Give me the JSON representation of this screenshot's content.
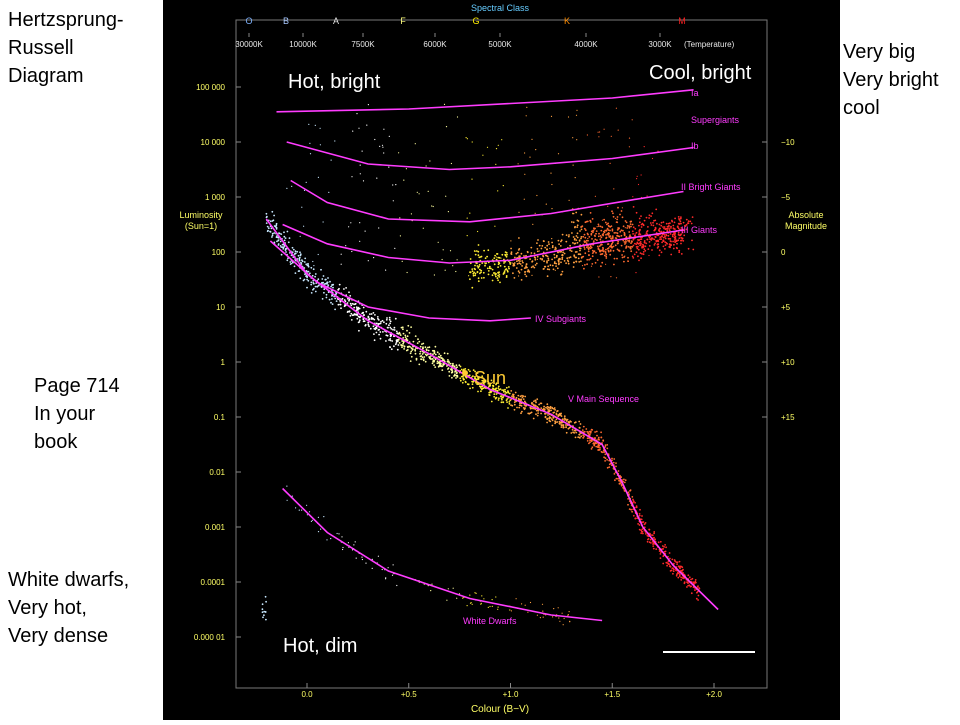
{
  "notes": {
    "hertzsprung": "Hertzsprung-\nRussell\nDiagram",
    "page_ref": "Page 714\nIn your\nbook",
    "white_dwarfs": "White dwarfs,\nVery hot,\nVery dense",
    "very_big": "Very big\nVery bright\ncool"
  },
  "chart_data": {
    "type": "scatter",
    "top_axis_title": "Spectral Class",
    "spectral_classes": [
      {
        "label": "O",
        "color": "#7fb3ff"
      },
      {
        "label": "B",
        "color": "#a8c8ff"
      },
      {
        "label": "A",
        "color": "#e0e0e0"
      },
      {
        "label": "F",
        "color": "#ffff80"
      },
      {
        "label": "G",
        "color": "#ffee00"
      },
      {
        "label": "K",
        "color": "#ff8c00"
      },
      {
        "label": "M",
        "color": "#ff2020"
      }
    ],
    "temperature_labels": [
      "30000K",
      "10000K",
      "7500K",
      "6000K",
      "5000K",
      "4000K",
      "3000K"
    ],
    "temperature_title": "(Temperature)",
    "xlabel": "Colour (B−V)",
    "x_ticks": [
      "0.0",
      "+0.5",
      "+1.0",
      "+1.5",
      "+2.0"
    ],
    "x_tick_values": [
      0.0,
      0.5,
      1.0,
      1.5,
      2.0
    ],
    "xlim": [
      -0.35,
      2.25
    ],
    "ylabel_left": "Luminosity\n(Sun=1)",
    "y_left_ticks": [
      "100 000",
      "10 000",
      "1 000",
      "100",
      "10",
      "1",
      "0.1",
      "0.01",
      "0.001",
      "0.0001",
      "0.000 01"
    ],
    "y_left_log_values": [
      5,
      4,
      3,
      2,
      1,
      0,
      -1,
      -2,
      -3,
      -4,
      -5
    ],
    "ylim_log_luminosity": [
      -6,
      6
    ],
    "ylabel_right": "Absolute\nMagnitude",
    "y_right_ticks": [
      "−10",
      "−5",
      "0",
      "+5",
      "+10",
      "+15"
    ],
    "y_right_values": [
      -10,
      -5,
      0,
      5,
      10,
      15
    ],
    "series": [
      {
        "name": "Ia",
        "color": "#ff3cff",
        "points": [
          [
            -0.15,
            4.55
          ],
          [
            0.5,
            4.6
          ],
          [
            1.0,
            4.7
          ],
          [
            1.5,
            4.8
          ],
          [
            1.9,
            4.95
          ]
        ]
      },
      {
        "name": "Ib",
        "color": "#ff3cff",
        "points": [
          [
            -0.1,
            4.0
          ],
          [
            0.3,
            3.6
          ],
          [
            0.7,
            3.5
          ],
          [
            1.0,
            3.55
          ],
          [
            1.5,
            3.7
          ],
          [
            1.9,
            3.9
          ]
        ]
      },
      {
        "name": "II Bright Giants",
        "color": "#ff3cff",
        "points": [
          [
            -0.08,
            3.3
          ],
          [
            0.1,
            2.9
          ],
          [
            0.4,
            2.6
          ],
          [
            0.8,
            2.55
          ],
          [
            1.2,
            2.7
          ],
          [
            1.6,
            2.95
          ],
          [
            1.85,
            3.1
          ]
        ]
      },
      {
        "name": "III Giants",
        "color": "#ff3cff",
        "points": [
          [
            -0.12,
            2.5
          ],
          [
            0.1,
            2.15
          ],
          [
            0.4,
            1.9
          ],
          [
            0.7,
            1.8
          ],
          [
            1.0,
            1.85
          ],
          [
            1.4,
            2.15
          ],
          [
            1.85,
            2.4
          ]
        ]
      },
      {
        "name": "IV Subgiants",
        "color": "#ff3cff",
        "points": [
          [
            -0.18,
            2.2
          ],
          [
            0.05,
            1.45
          ],
          [
            0.3,
            1.0
          ],
          [
            0.6,
            0.8
          ],
          [
            0.9,
            0.75
          ],
          [
            1.1,
            0.8
          ]
        ]
      },
      {
        "name": "V Main Sequence",
        "color": "#ff3cff",
        "points": [
          [
            -0.2,
            2.6
          ],
          [
            0.0,
            1.6
          ],
          [
            0.3,
            0.75
          ],
          [
            0.6,
            0.15
          ],
          [
            0.9,
            -0.5
          ],
          [
            1.2,
            -0.95
          ],
          [
            1.45,
            -1.5
          ],
          [
            1.55,
            -2.2
          ],
          [
            1.65,
            -3.0
          ],
          [
            1.8,
            -3.7
          ],
          [
            2.02,
            -4.5
          ]
        ]
      },
      {
        "name": "White Dwarfs",
        "color": "#ff3cff",
        "points": [
          [
            -0.12,
            -2.3
          ],
          [
            0.1,
            -3.1
          ],
          [
            0.4,
            -3.8
          ],
          [
            0.8,
            -4.3
          ],
          [
            1.2,
            -4.6
          ],
          [
            1.45,
            -4.7
          ]
        ]
      }
    ],
    "annotations": {
      "hot_bright": "Hot, bright",
      "cool_bright": "Cool, bright",
      "hot_dim": "Hot, dim",
      "supergiants": "Supergiants",
      "sun": "Sun"
    },
    "legend": "none",
    "grid": false
  }
}
